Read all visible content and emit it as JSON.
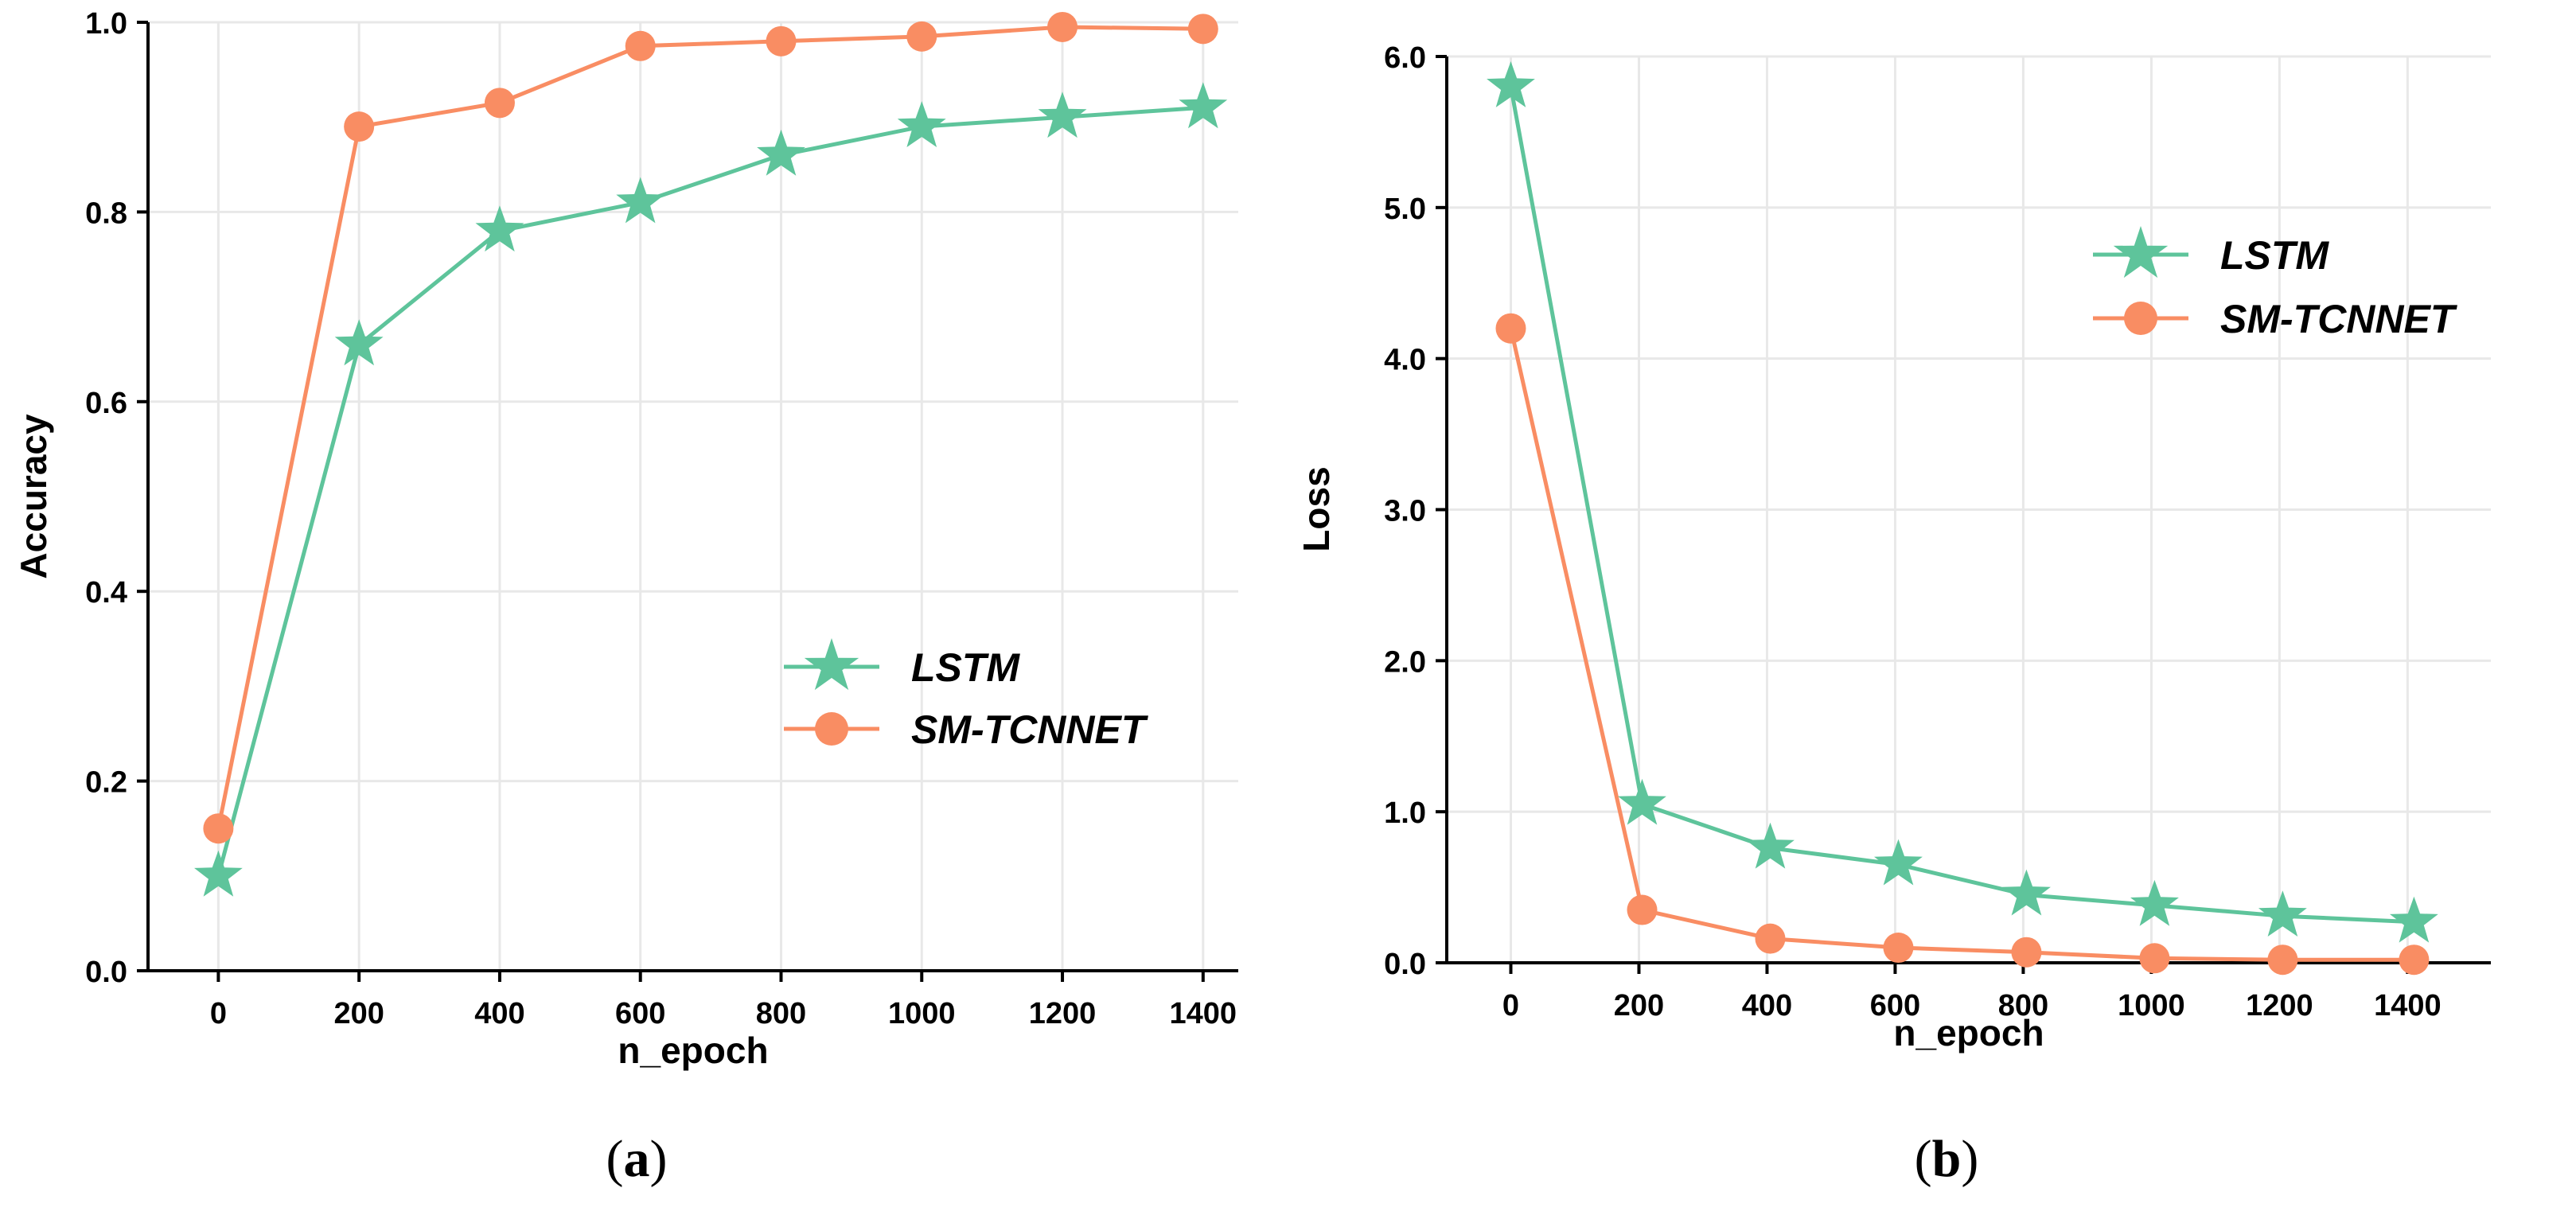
{
  "colors": {
    "lstm": "#5ec49b",
    "sm_tcnnet": "#f98d63",
    "grid": "#e8e8e8",
    "axis": "#000000"
  },
  "chart_data": [
    {
      "type": "line",
      "panel": "(a)",
      "panel_paren_open": "(",
      "panel_letter": "a",
      "panel_paren_close": ")",
      "xlabel": "n_epoch",
      "ylabel": "Accuracy",
      "xlim": [
        -100,
        1450
      ],
      "ylim": [
        0.0,
        1.0
      ],
      "xticks": [
        0,
        200,
        400,
        600,
        800,
        1000,
        1200,
        1400
      ],
      "yticks": [
        0.0,
        0.2,
        0.4,
        0.6,
        0.8,
        1.0
      ],
      "ytick_labels": [
        "0.0",
        "0.2",
        "0.4",
        "0.6",
        "0.8",
        "1.0"
      ],
      "legend_position": "center-right",
      "series": [
        {
          "name": "LSTM",
          "marker": "star",
          "color": "#5ec49b",
          "x": [
            0,
            200,
            400,
            600,
            800,
            1000,
            1200,
            1400
          ],
          "y": [
            0.1,
            0.66,
            0.78,
            0.81,
            0.86,
            0.89,
            0.9,
            0.91
          ]
        },
        {
          "name": "SM-TCNNET",
          "marker": "circle",
          "color": "#f98d63",
          "x": [
            0,
            200,
            400,
            600,
            800,
            1000,
            1200,
            1400
          ],
          "y": [
            0.15,
            0.89,
            0.915,
            0.975,
            0.98,
            0.985,
            0.995,
            0.993
          ]
        }
      ]
    },
    {
      "type": "line",
      "panel": "(b)",
      "panel_paren_open": "(",
      "panel_letter": "b",
      "panel_paren_close": ")",
      "xlabel": "n_epoch",
      "ylabel": "Loss",
      "xlim": [
        -100,
        1530
      ],
      "ylim": [
        0.0,
        6.0
      ],
      "xticks": [
        0,
        200,
        400,
        600,
        800,
        1000,
        1200,
        1400
      ],
      "yticks": [
        0.0,
        1.0,
        2.0,
        3.0,
        4.0,
        5.0,
        6.0
      ],
      "ytick_labels": [
        "0.0",
        "1.0",
        "2.0",
        "3.0",
        "4.0",
        "5.0",
        "6.0"
      ],
      "legend_position": "upper-right",
      "series": [
        {
          "name": "LSTM",
          "marker": "star",
          "color": "#5ec49b",
          "x": [
            0,
            205,
            405,
            605,
            805,
            1005,
            1205,
            1410
          ],
          "y": [
            5.8,
            1.05,
            0.76,
            0.65,
            0.45,
            0.38,
            0.31,
            0.27
          ]
        },
        {
          "name": "SM-TCNNET",
          "marker": "circle",
          "color": "#f98d63",
          "x": [
            0,
            205,
            405,
            605,
            805,
            1005,
            1205,
            1410
          ],
          "y": [
            4.2,
            0.35,
            0.16,
            0.1,
            0.07,
            0.03,
            0.02,
            0.02
          ]
        }
      ]
    }
  ]
}
